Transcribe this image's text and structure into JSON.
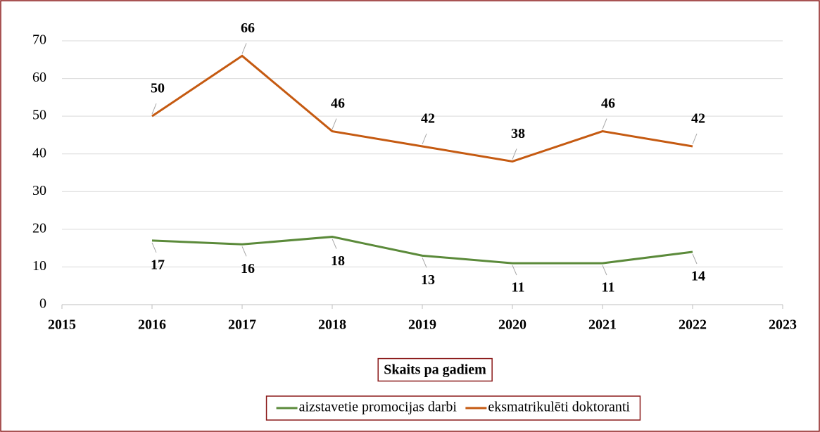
{
  "chart_data": {
    "type": "line",
    "title": "Skaits pa gadiem",
    "x": [
      2016,
      2017,
      2018,
      2019,
      2020,
      2021,
      2022
    ],
    "series": [
      {
        "name": "aizstavetie promocijas darbi",
        "color": "#5b8a3a",
        "values": [
          17,
          16,
          18,
          13,
          11,
          11,
          14
        ],
        "label_position": "below"
      },
      {
        "name": "eksmatrikulēti doktoranti",
        "color": "#c55a11",
        "values": [
          50,
          66,
          46,
          42,
          38,
          46,
          42
        ],
        "label_position": "above"
      }
    ],
    "xlim": [
      2015,
      2023
    ],
    "xticks": [
      2015,
      2016,
      2017,
      2018,
      2019,
      2020,
      2021,
      2022,
      2023
    ],
    "ylim": [
      0,
      70
    ],
    "yticks": [
      0,
      10,
      20,
      30,
      40,
      50,
      60,
      70
    ],
    "grid": true,
    "legend": "bottom"
  }
}
